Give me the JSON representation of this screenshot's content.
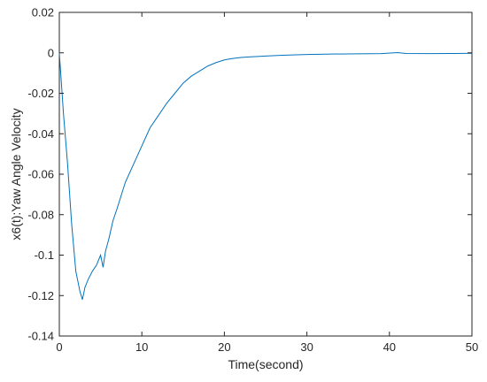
{
  "chart_data": {
    "type": "line",
    "title": "",
    "xlabel": "Time(second)",
    "ylabel": "x6(t):Yaw Angle Velocity",
    "xlim": [
      0,
      50
    ],
    "ylim": [
      -0.14,
      0.02
    ],
    "xticks": [
      0,
      10,
      20,
      30,
      40,
      50
    ],
    "xtick_labels": [
      "0",
      "10",
      "20",
      "30",
      "40",
      "50"
    ],
    "yticks": [
      0.02,
      0,
      -0.02,
      -0.04,
      -0.06,
      -0.08,
      -0.1,
      -0.12,
      -0.14
    ],
    "ytick_labels": [
      "0.02",
      "0",
      "-0.02",
      "-0.04",
      "-0.06",
      "-0.08",
      "-0.1",
      "-0.12",
      "-0.14"
    ],
    "grid": false,
    "line_color": "#0072bd",
    "series": [
      {
        "x": [
          0,
          0.2,
          0.5,
          1.0,
          1.5,
          2.0,
          2.5,
          2.8,
          3.1,
          3.5,
          4.0,
          4.5,
          5.0,
          5.3,
          5.6,
          6.0,
          6.5,
          7.0,
          8.0,
          9.0,
          10.0,
          11.0,
          12.0,
          13.0,
          14.0,
          15.0,
          16.0,
          17.0,
          18.0,
          19.0,
          20.0,
          21.0,
          22.0,
          23.0,
          25.0,
          27.0,
          30.0,
          33.0,
          36.0,
          39.0,
          41.0,
          42.0,
          45.0,
          48.0,
          50.0
        ],
        "y": [
          0,
          -0.012,
          -0.03,
          -0.055,
          -0.085,
          -0.108,
          -0.118,
          -0.122,
          -0.116,
          -0.112,
          -0.108,
          -0.105,
          -0.1,
          -0.106,
          -0.098,
          -0.092,
          -0.083,
          -0.077,
          -0.064,
          -0.055,
          -0.046,
          -0.037,
          -0.031,
          -0.025,
          -0.02,
          -0.015,
          -0.0115,
          -0.009,
          -0.0065,
          -0.0048,
          -0.0035,
          -0.0028,
          -0.0023,
          -0.002,
          -0.0016,
          -0.0012,
          -0.0008,
          -0.0006,
          -0.0005,
          -0.0004,
          0.0001,
          -0.0003,
          -0.0004,
          -0.0003,
          -0.0002
        ]
      }
    ]
  }
}
